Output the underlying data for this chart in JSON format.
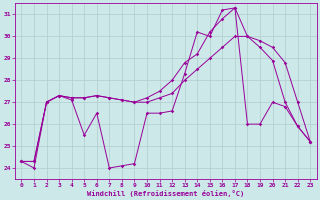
{
  "xlabel": "Windchill (Refroidissement éolien,°C)",
  "bg_color": "#cce8e8",
  "grid_color": "#b0cccc",
  "line_color": "#990099",
  "xlim": [
    -0.5,
    23.5
  ],
  "ylim": [
    23.5,
    31.5
  ],
  "yticks": [
    24,
    25,
    26,
    27,
    28,
    29,
    30,
    31
  ],
  "xticks": [
    0,
    1,
    2,
    3,
    4,
    5,
    6,
    7,
    8,
    9,
    10,
    11,
    12,
    13,
    14,
    15,
    16,
    17,
    18,
    19,
    20,
    21,
    22,
    23
  ],
  "s1": [
    24.3,
    24.0,
    27.0,
    27.3,
    27.1,
    25.5,
    26.5,
    24.0,
    24.1,
    24.2,
    26.5,
    26.5,
    26.6,
    28.3,
    30.2,
    30.0,
    31.2,
    31.3,
    26.0,
    26.0,
    27.0,
    26.8,
    25.9,
    25.2
  ],
  "s2": [
    24.3,
    24.3,
    27.0,
    27.3,
    27.2,
    27.2,
    27.3,
    27.2,
    27.1,
    27.0,
    27.0,
    27.2,
    27.4,
    28.0,
    28.5,
    29.0,
    29.5,
    30.0,
    30.0,
    29.8,
    29.5,
    28.8,
    27.0,
    25.2
  ],
  "s3": [
    24.3,
    24.3,
    27.0,
    27.3,
    27.2,
    27.2,
    27.3,
    27.2,
    27.1,
    27.0,
    27.2,
    27.5,
    28.0,
    28.8,
    29.2,
    30.2,
    30.8,
    31.3,
    30.0,
    29.5,
    28.9,
    27.0,
    25.9,
    25.2
  ]
}
